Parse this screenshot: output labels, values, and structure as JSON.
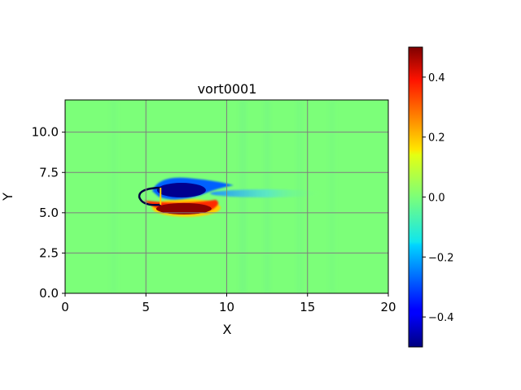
{
  "chart_data": {
    "type": "heatmap",
    "title": "vort0001",
    "xlabel": "X",
    "ylabel": "Y",
    "xlim": [
      0,
      20
    ],
    "ylim": [
      0,
      12
    ],
    "x_ticks": [
      0,
      5,
      10,
      15,
      20
    ],
    "y_ticks": [
      0.0,
      2.5,
      5.0,
      7.5,
      10.0
    ],
    "x_tick_labels": [
      "0",
      "5",
      "10",
      "15",
      "20"
    ],
    "y_tick_labels": [
      "0.0",
      "2.5",
      "5.0",
      "7.5",
      "10.0"
    ],
    "grid": true,
    "colormap": "jet",
    "colorbar": {
      "vmin": -0.5,
      "vmax": 0.5,
      "ticks": [
        0.4,
        0.2,
        0.0,
        -0.2,
        -0.4
      ],
      "tick_labels": [
        "0.4",
        "0.2",
        "0.0",
        "−0.2",
        "−0.4"
      ]
    },
    "background_value": 0.0,
    "features": [
      {
        "name": "negative-vortex",
        "center": [
          7.3,
          6.3
        ],
        "value": -0.5
      },
      {
        "name": "positive-vortex",
        "center": [
          7.5,
          5.3
        ],
        "value": 0.5
      },
      {
        "name": "negative-wake-tail",
        "center": [
          12.5,
          6.2
        ],
        "value": -0.15
      },
      {
        "name": "airfoil-body",
        "center": [
          5.2,
          6.0
        ],
        "value": 0.0
      }
    ]
  }
}
